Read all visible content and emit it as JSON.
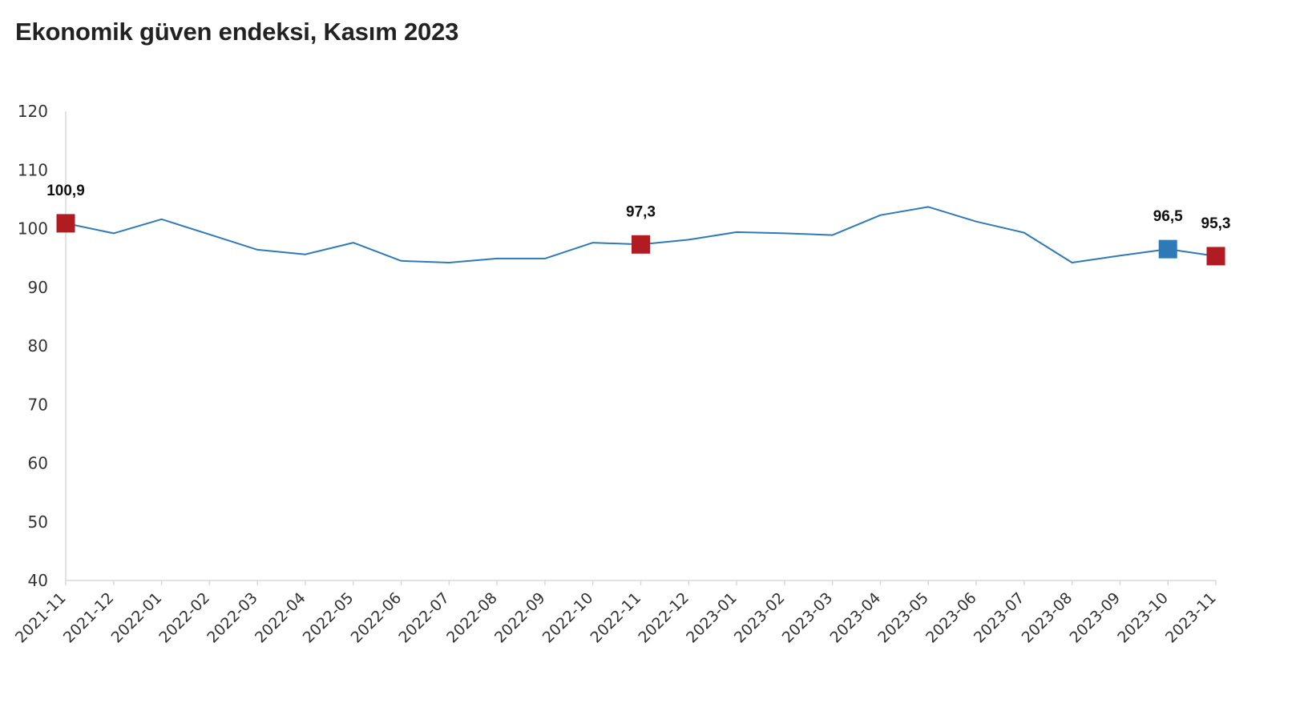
{
  "title": "Ekonomik güven endeksi, Kasım 2023",
  "chart_data": {
    "type": "line",
    "title": "Ekonomik güven endeksi, Kasım 2023",
    "xlabel": "",
    "ylabel": "",
    "ylim": [
      40,
      120
    ],
    "yticks": [
      40,
      50,
      60,
      70,
      80,
      90,
      100,
      110,
      120
    ],
    "grid": false,
    "categories": [
      "2021-11",
      "2021-12",
      "2022-01",
      "2022-02",
      "2022-03",
      "2022-04",
      "2022-05",
      "2022-06",
      "2022-07",
      "2022-08",
      "2022-09",
      "2022-10",
      "2022-11",
      "2022-12",
      "2023-01",
      "2023-02",
      "2023-03",
      "2023-04",
      "2023-05",
      "2023-06",
      "2023-07",
      "2023-08",
      "2023-09",
      "2023-10",
      "2023-11"
    ],
    "series": [
      {
        "values": [
          100.9,
          99.2,
          101.6,
          99.0,
          96.4,
          95.6,
          97.6,
          94.5,
          94.2,
          94.9,
          94.9,
          97.6,
          97.3,
          98.1,
          99.4,
          99.2,
          98.9,
          102.3,
          103.7,
          101.2,
          99.3,
          94.2,
          95.4,
          96.5,
          95.3
        ],
        "color": "#2e7ab8"
      }
    ],
    "highlights": [
      {
        "index": 0,
        "label": "100,9",
        "color": "#b01c22"
      },
      {
        "index": 12,
        "label": "97,3",
        "color": "#b01c22"
      },
      {
        "index": 23,
        "label": "96,5",
        "color": "#2e7ab8"
      },
      {
        "index": 24,
        "label": "95,3",
        "color": "#b01c22"
      }
    ],
    "axis_color": "#d9d9d9"
  }
}
